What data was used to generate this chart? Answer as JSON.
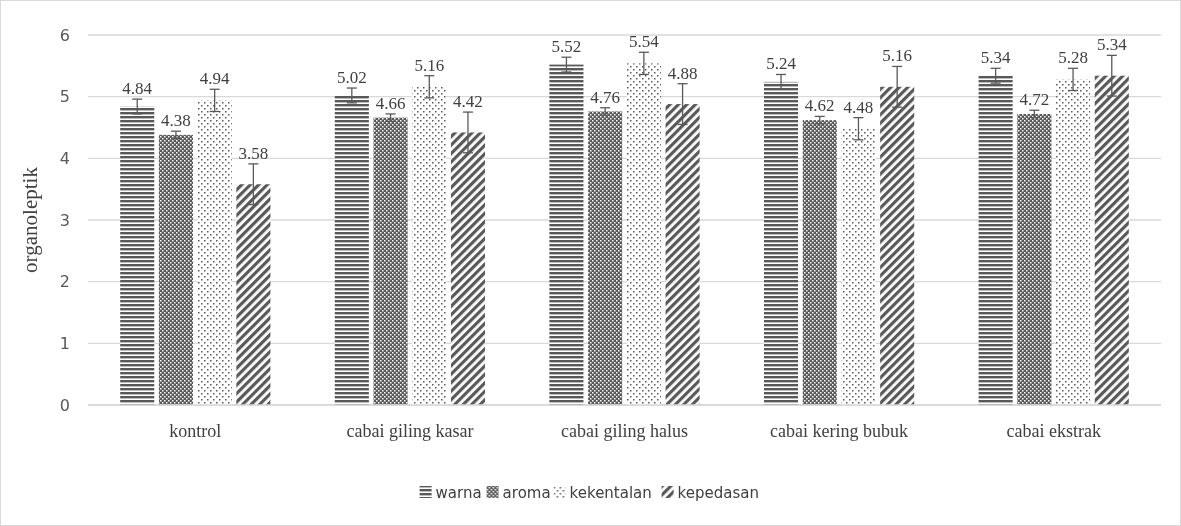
{
  "chart_data": {
    "type": "bar",
    "ylabel": "organoleptik",
    "categories": [
      "kontrol",
      "cabai giling kasar",
      "cabai giling halus",
      "cabai kering bubuk",
      "cabai ekstrak"
    ],
    "series": [
      {
        "name": "warna",
        "color": "#595959",
        "values": [
          4.84,
          5.02,
          5.52,
          5.24,
          5.34
        ],
        "errors": [
          0.12,
          0.12,
          0.12,
          0.12,
          0.12
        ]
      },
      {
        "name": "aroma",
        "color": "#595959",
        "values": [
          4.38,
          4.66,
          4.76,
          4.62,
          4.72
        ],
        "errors": [
          0.06,
          0.06,
          0.06,
          0.06,
          0.06
        ]
      },
      {
        "name": "kekentalan",
        "color": "#595959",
        "values": [
          4.94,
          5.16,
          5.54,
          4.48,
          5.28
        ],
        "errors": [
          0.18,
          0.18,
          0.18,
          0.18,
          0.18
        ]
      },
      {
        "name": "kepedasan",
        "color": "#595959",
        "values": [
          3.58,
          4.42,
          4.88,
          5.16,
          5.34
        ],
        "errors": [
          0.33,
          0.33,
          0.33,
          0.33,
          0.33
        ]
      }
    ],
    "ylim": [
      0,
      6
    ],
    "yticks": [
      0,
      1,
      2,
      3,
      4,
      5,
      6
    ],
    "grid": "y",
    "legend": "bottom",
    "data_labels": true
  }
}
